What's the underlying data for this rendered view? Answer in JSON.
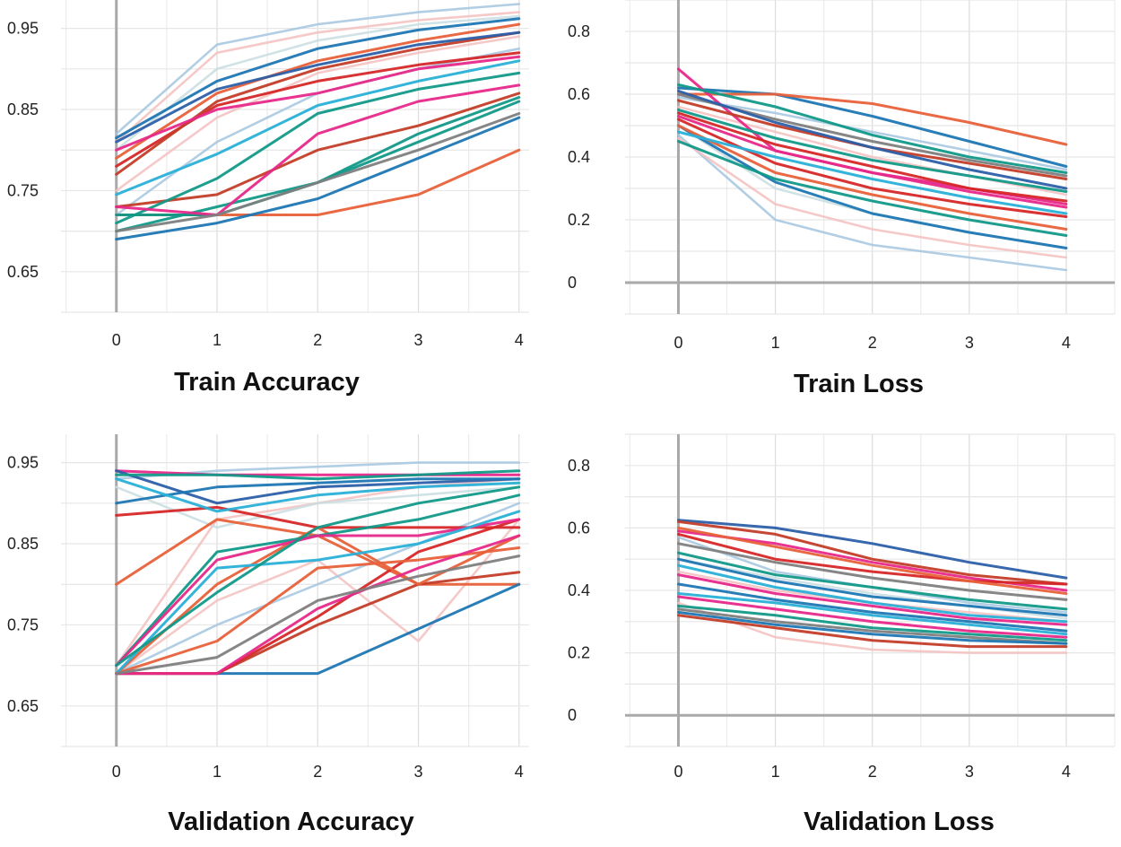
{
  "palette": [
    "#1f77b4",
    "#d62728",
    "#e8613a",
    "#e7298a",
    "#119988",
    "#2ab0d8",
    "#7f7f7f",
    "#a3c6df",
    "#f5c0c0",
    "#c8dde0",
    "#c33d28",
    "#2c5fa8"
  ],
  "chart_data": [
    {
      "type": "line",
      "title": "Train Accuracy",
      "x": [
        0,
        1,
        2,
        3,
        4
      ],
      "xticks": [
        "0",
        "1",
        "2",
        "3",
        "4"
      ],
      "ylim": [
        0.6,
        0.985
      ],
      "xlim": [
        -0.55,
        4.1
      ],
      "yticks": [
        "0.65",
        "0.75",
        "0.85",
        "0.95"
      ],
      "ytick_values": [
        0.65,
        0.75,
        0.85,
        0.95
      ],
      "grid": true,
      "series": [
        {
          "values": [
            0.815,
            0.885,
            0.925,
            0.948,
            0.962
          ],
          "color": "#1f77b4"
        },
        {
          "values": [
            0.78,
            0.855,
            0.885,
            0.905,
            0.92
          ],
          "color": "#d62728"
        },
        {
          "values": [
            0.79,
            0.87,
            0.91,
            0.935,
            0.955
          ],
          "color": "#e8613a"
        },
        {
          "values": [
            0.77,
            0.86,
            0.9,
            0.925,
            0.945
          ],
          "color": "#c33d28"
        },
        {
          "values": [
            0.72,
            0.72,
            0.72,
            0.745,
            0.8
          ],
          "color": "#e8613a"
        },
        {
          "values": [
            0.69,
            0.71,
            0.74,
            0.79,
            0.84
          ],
          "color": "#1f77b4"
        },
        {
          "values": [
            0.72,
            0.72,
            0.76,
            0.82,
            0.865
          ],
          "color": "#119988"
        },
        {
          "values": [
            0.73,
            0.745,
            0.8,
            0.83,
            0.87
          ],
          "color": "#c33d28"
        },
        {
          "values": [
            0.7,
            0.73,
            0.76,
            0.81,
            0.86
          ],
          "color": "#119988"
        },
        {
          "values": [
            0.71,
            0.765,
            0.845,
            0.875,
            0.895
          ],
          "color": "#119988"
        },
        {
          "values": [
            0.73,
            0.72,
            0.82,
            0.86,
            0.88
          ],
          "color": "#e7298a"
        },
        {
          "values": [
            0.745,
            0.795,
            0.855,
            0.885,
            0.91
          ],
          "color": "#2ab0d8"
        },
        {
          "values": [
            0.8,
            0.85,
            0.87,
            0.9,
            0.915
          ],
          "color": "#e7298a"
        },
        {
          "values": [
            0.81,
            0.875,
            0.905,
            0.93,
            0.945
          ],
          "color": "#2c5fa8"
        },
        {
          "values": [
            0.7,
            0.72,
            0.76,
            0.8,
            0.845
          ],
          "color": "#7f7f7f"
        },
        {
          "values": [
            0.82,
            0.93,
            0.955,
            0.97,
            0.98
          ],
          "color": "#a3c6df"
        },
        {
          "values": [
            0.81,
            0.92,
            0.945,
            0.96,
            0.97
          ],
          "color": "#f5c0c0"
        },
        {
          "values": [
            0.8,
            0.9,
            0.935,
            0.955,
            0.965
          ],
          "color": "#c8dde0"
        },
        {
          "values": [
            0.75,
            0.84,
            0.895,
            0.92,
            0.94
          ],
          "color": "#f5c0c0"
        },
        {
          "values": [
            0.72,
            0.81,
            0.87,
            0.9,
            0.925
          ],
          "color": "#a3c6df"
        }
      ]
    },
    {
      "type": "line",
      "title": "Train Loss",
      "x": [
        0,
        1,
        2,
        3,
        4
      ],
      "xticks": [
        "0",
        "1",
        "2",
        "3",
        "4"
      ],
      "ylim": [
        -0.1,
        0.9
      ],
      "xlim": [
        -0.55,
        4.5
      ],
      "yticks": [
        "0",
        "0.2",
        "0.4",
        "0.6",
        "0.8"
      ],
      "ytick_values": [
        0,
        0.2,
        0.4,
        0.6,
        0.8
      ],
      "grid": true,
      "series": [
        {
          "values": [
            0.62,
            0.6,
            0.53,
            0.45,
            0.37
          ],
          "color": "#1f77b4"
        },
        {
          "values": [
            0.6,
            0.6,
            0.57,
            0.51,
            0.44
          ],
          "color": "#e8613a"
        },
        {
          "values": [
            0.68,
            0.42,
            0.35,
            0.3,
            0.25
          ],
          "color": "#e7298a"
        },
        {
          "values": [
            0.5,
            0.32,
            0.22,
            0.16,
            0.11
          ],
          "color": "#1f77b4"
        },
        {
          "values": [
            0.52,
            0.38,
            0.3,
            0.25,
            0.21
          ],
          "color": "#d62728"
        },
        {
          "values": [
            0.45,
            0.33,
            0.26,
            0.2,
            0.15
          ],
          "color": "#119988"
        },
        {
          "values": [
            0.58,
            0.5,
            0.43,
            0.38,
            0.33
          ],
          "color": "#c33d28"
        },
        {
          "values": [
            0.55,
            0.46,
            0.39,
            0.34,
            0.29
          ],
          "color": "#119988"
        },
        {
          "values": [
            0.5,
            0.35,
            0.28,
            0.22,
            0.17
          ],
          "color": "#e8613a"
        },
        {
          "values": [
            0.48,
            0.4,
            0.33,
            0.27,
            0.22
          ],
          "color": "#2ab0d8"
        },
        {
          "values": [
            0.63,
            0.56,
            0.47,
            0.4,
            0.35
          ],
          "color": "#119988"
        },
        {
          "values": [
            0.6,
            0.52,
            0.45,
            0.39,
            0.34
          ],
          "color": "#7f7f7f"
        },
        {
          "values": [
            0.53,
            0.42,
            0.35,
            0.29,
            0.24
          ],
          "color": "#e7298a"
        },
        {
          "values": [
            0.47,
            0.2,
            0.12,
            0.08,
            0.04
          ],
          "color": "#a3c6df"
        },
        {
          "values": [
            0.46,
            0.25,
            0.17,
            0.12,
            0.08
          ],
          "color": "#f5c0c0"
        },
        {
          "values": [
            0.5,
            0.3,
            0.22,
            0.16,
            0.11
          ],
          "color": "#c8dde0"
        },
        {
          "values": [
            0.56,
            0.48,
            0.4,
            0.34,
            0.28
          ],
          "color": "#f5c0c0"
        },
        {
          "values": [
            0.59,
            0.54,
            0.48,
            0.42,
            0.36
          ],
          "color": "#a3c6df"
        },
        {
          "values": [
            0.54,
            0.44,
            0.37,
            0.3,
            0.26
          ],
          "color": "#d62728"
        },
        {
          "values": [
            0.61,
            0.51,
            0.43,
            0.36,
            0.3
          ],
          "color": "#2c5fa8"
        }
      ]
    },
    {
      "type": "line",
      "title": "Validation Accuracy",
      "x": [
        0,
        1,
        2,
        3,
        4
      ],
      "xticks": [
        "0",
        "1",
        "2",
        "3",
        "4"
      ],
      "ylim": [
        0.6,
        0.985
      ],
      "xlim": [
        -0.55,
        4.1
      ],
      "yticks": [
        "0.65",
        "0.75",
        "0.85",
        "0.95"
      ],
      "ytick_values": [
        0.65,
        0.75,
        0.85,
        0.95
      ],
      "grid": true,
      "series": [
        {
          "values": [
            0.94,
            0.935,
            0.935,
            0.935,
            0.935
          ],
          "color": "#e7298a"
        },
        {
          "values": [
            0.94,
            0.9,
            0.92,
            0.925,
            0.93
          ],
          "color": "#2c5fa8"
        },
        {
          "values": [
            0.935,
            0.935,
            0.93,
            0.935,
            0.94
          ],
          "color": "#119988"
        },
        {
          "values": [
            0.9,
            0.92,
            0.925,
            0.93,
            0.93
          ],
          "color": "#1f77b4"
        },
        {
          "values": [
            0.885,
            0.895,
            0.87,
            0.87,
            0.87
          ],
          "color": "#d62728"
        },
        {
          "values": [
            0.8,
            0.88,
            0.86,
            0.8,
            0.8
          ],
          "color": "#e8613a"
        },
        {
          "values": [
            0.69,
            0.69,
            0.69,
            0.745,
            0.8
          ],
          "color": "#1f77b4"
        },
        {
          "values": [
            0.69,
            0.69,
            0.75,
            0.8,
            0.815
          ],
          "color": "#c33d28"
        },
        {
          "values": [
            0.69,
            0.69,
            0.76,
            0.84,
            0.88
          ],
          "color": "#d62728"
        },
        {
          "values": [
            0.69,
            0.73,
            0.82,
            0.83,
            0.845
          ],
          "color": "#e8613a"
        },
        {
          "values": [
            0.69,
            0.8,
            0.87,
            0.8,
            0.86
          ],
          "color": "#e8613a"
        },
        {
          "values": [
            0.7,
            0.84,
            0.86,
            0.88,
            0.91
          ],
          "color": "#119988"
        },
        {
          "values": [
            0.7,
            0.83,
            0.86,
            0.86,
            0.88
          ],
          "color": "#e7298a"
        },
        {
          "values": [
            0.69,
            0.82,
            0.83,
            0.85,
            0.89
          ],
          "color": "#2ab0d8"
        },
        {
          "values": [
            0.7,
            0.79,
            0.87,
            0.9,
            0.92
          ],
          "color": "#119988"
        },
        {
          "values": [
            0.69,
            0.69,
            0.77,
            0.82,
            0.86
          ],
          "color": "#e7298a"
        },
        {
          "values": [
            0.69,
            0.71,
            0.78,
            0.81,
            0.835
          ],
          "color": "#7f7f7f"
        },
        {
          "values": [
            0.93,
            0.89,
            0.91,
            0.92,
            0.925
          ],
          "color": "#2ab0d8"
        },
        {
          "values": [
            0.93,
            0.94,
            0.945,
            0.95,
            0.95
          ],
          "color": "#a3c6df"
        },
        {
          "values": [
            0.7,
            0.88,
            0.9,
            0.92,
            0.93
          ],
          "color": "#f5c0c0"
        },
        {
          "values": [
            0.69,
            0.78,
            0.83,
            0.73,
            0.88
          ],
          "color": "#f5c0c0"
        },
        {
          "values": [
            0.92,
            0.87,
            0.9,
            0.91,
            0.92
          ],
          "color": "#c8dde0"
        },
        {
          "values": [
            0.69,
            0.75,
            0.8,
            0.85,
            0.9
          ],
          "color": "#a3c6df"
        }
      ]
    },
    {
      "type": "line",
      "title": "Validation Loss",
      "x": [
        0,
        1,
        2,
        3,
        4
      ],
      "xticks": [
        "0",
        "1",
        "2",
        "3",
        "4"
      ],
      "ylim": [
        -0.1,
        0.9
      ],
      "xlim": [
        -0.55,
        4.5
      ],
      "yticks": [
        "0",
        "0.2",
        "0.4",
        "0.6",
        "0.8"
      ],
      "ytick_values": [
        0,
        0.2,
        0.4,
        0.6,
        0.8
      ],
      "grid": true,
      "series": [
        {
          "values": [
            0.625,
            0.6,
            0.55,
            0.49,
            0.44
          ],
          "color": "#2c5fa8"
        },
        {
          "values": [
            0.62,
            0.58,
            0.5,
            0.45,
            0.42
          ],
          "color": "#c33d28"
        },
        {
          "values": [
            0.59,
            0.55,
            0.49,
            0.44,
            0.4
          ],
          "color": "#e7298a"
        },
        {
          "values": [
            0.58,
            0.5,
            0.46,
            0.43,
            0.42
          ],
          "color": "#d62728"
        },
        {
          "values": [
            0.6,
            0.54,
            0.48,
            0.43,
            0.39
          ],
          "color": "#e8613a"
        },
        {
          "values": [
            0.55,
            0.49,
            0.44,
            0.4,
            0.37
          ],
          "color": "#7f7f7f"
        },
        {
          "values": [
            0.52,
            0.45,
            0.41,
            0.37,
            0.34
          ],
          "color": "#119988"
        },
        {
          "values": [
            0.5,
            0.43,
            0.38,
            0.35,
            0.32
          ],
          "color": "#1f77b4"
        },
        {
          "values": [
            0.48,
            0.41,
            0.36,
            0.32,
            0.3
          ],
          "color": "#2ab0d8"
        },
        {
          "values": [
            0.45,
            0.39,
            0.35,
            0.31,
            0.29
          ],
          "color": "#e7298a"
        },
        {
          "values": [
            0.42,
            0.37,
            0.33,
            0.3,
            0.27
          ],
          "color": "#1f77b4"
        },
        {
          "values": [
            0.39,
            0.36,
            0.32,
            0.29,
            0.26
          ],
          "color": "#2ab0d8"
        },
        {
          "values": [
            0.38,
            0.34,
            0.3,
            0.27,
            0.25
          ],
          "color": "#e7298a"
        },
        {
          "values": [
            0.35,
            0.32,
            0.28,
            0.26,
            0.24
          ],
          "color": "#119988"
        },
        {
          "values": [
            0.34,
            0.3,
            0.27,
            0.25,
            0.23
          ],
          "color": "#7f7f7f"
        },
        {
          "values": [
            0.32,
            0.28,
            0.24,
            0.22,
            0.22
          ],
          "color": "#c33d28"
        },
        {
          "values": [
            0.33,
            0.29,
            0.26,
            0.24,
            0.23
          ],
          "color": "#1f77b4"
        },
        {
          "values": [
            0.36,
            0.25,
            0.21,
            0.2,
            0.2
          ],
          "color": "#f5c0c0"
        },
        {
          "values": [
            0.57,
            0.46,
            0.41,
            0.36,
            0.33
          ],
          "color": "#a3c6df"
        },
        {
          "values": [
            0.5,
            0.44,
            0.39,
            0.35,
            0.31
          ],
          "color": "#c8dde0"
        },
        {
          "values": [
            0.46,
            0.4,
            0.36,
            0.33,
            0.3
          ],
          "color": "#f5c0c0"
        }
      ]
    }
  ]
}
